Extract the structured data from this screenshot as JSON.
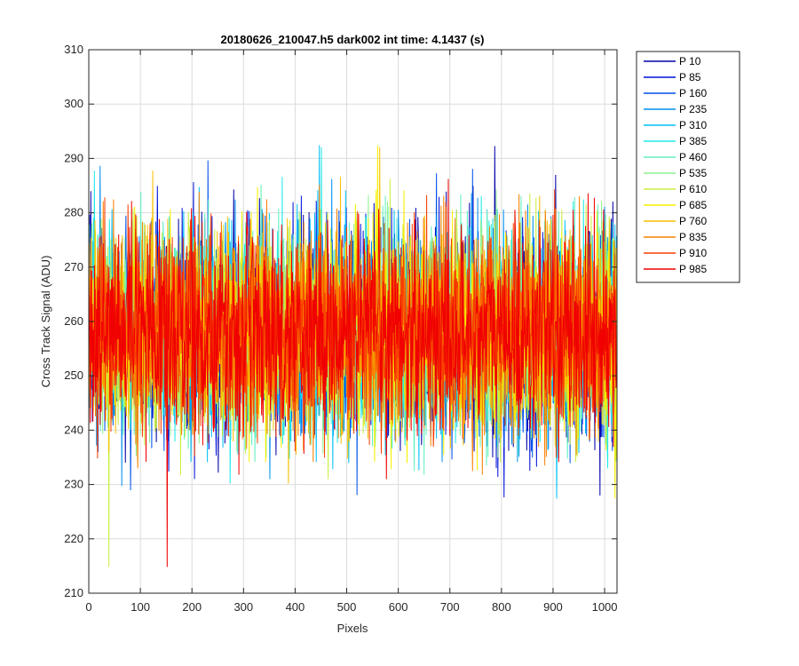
{
  "chart_data": {
    "type": "line",
    "title": "20180626_210047.h5  dark002   int time: 4.1437 (s)",
    "xlabel": "Pixels",
    "ylabel": "Cross Track Signal (ADU)",
    "xlim": [
      0,
      1024
    ],
    "ylim": [
      210,
      310
    ],
    "xticks": [
      "0",
      "100",
      "200",
      "300",
      "400",
      "500",
      "600",
      "700",
      "800",
      "900",
      "1000"
    ],
    "yticks": [
      "210",
      "220",
      "230",
      "240",
      "250",
      "260",
      "270",
      "280",
      "290",
      "300",
      "310"
    ],
    "grid": true,
    "legend_position": "outside-top-right",
    "noise": {
      "n_points": 1024,
      "mean": 258,
      "std": 9
    },
    "series": [
      {
        "name": "P 10",
        "color": "#0000a8"
      },
      {
        "name": "P 85",
        "color": "#0010d8"
      },
      {
        "name": "P 160",
        "color": "#0050e8"
      },
      {
        "name": "P 235",
        "color": "#0090f0"
      },
      {
        "name": "P 310",
        "color": "#00c0f8"
      },
      {
        "name": "P 385",
        "color": "#20e8e8"
      },
      {
        "name": "P 460",
        "color": "#60f0c0"
      },
      {
        "name": "P 535",
        "color": "#90f090"
      },
      {
        "name": "P 610",
        "color": "#c8f040"
      },
      {
        "name": "P 685",
        "color": "#f8f000"
      },
      {
        "name": "P 760",
        "color": "#f8c000"
      },
      {
        "name": "P 835",
        "color": "#f88000"
      },
      {
        "name": "P 910",
        "color": "#f84000"
      },
      {
        "name": "P 985",
        "color": "#f00000"
      }
    ]
  }
}
